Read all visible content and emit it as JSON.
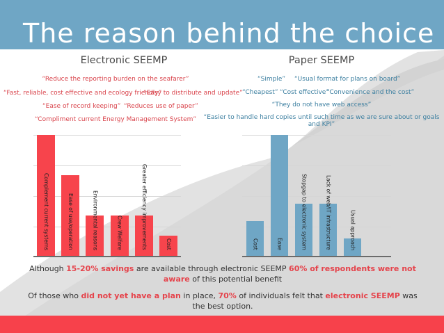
{
  "slide": {
    "title": "The reason behind the choice",
    "colors": {
      "header": "#6fa6c5",
      "electronic_bar": "#f7444c",
      "paper_bar": "#6fa6c5",
      "highlight": "#e5434b",
      "footer": "#f7414b"
    }
  },
  "electronic": {
    "heading": "Electronic SEEMP",
    "quotes": [
      "“Reduce the reporting burden on the seafarer”",
      "“Fast, reliable, cost effective and ecology friendly”",
      "“Easy to distribute and update”",
      "“Ease of record keeping”",
      "“Reduces use of paper”",
      "“Compliment current Energy Management System”"
    ]
  },
  "paper": {
    "heading": "Paper SEEMP",
    "quotes": [
      "“Simple”",
      "“Usual format for plans on board”",
      "“Cheapest”",
      "“Cost effective”",
      "“Convenience and the cost”",
      "“They do not have web access”",
      "“Easier to handle hard copies until such time as we are sure about or goals",
      "and KPI”"
    ]
  },
  "chart_data": [
    {
      "type": "bar",
      "title": "Electronic SEEMP",
      "categories": [
        "Complement current systems",
        "Ease of use/operation",
        "Environmental reasons",
        "Crew Welfare",
        "Greater efficiency improvements",
        "Cost"
      ],
      "values": [
        6,
        4,
        2,
        2,
        2,
        1
      ],
      "color": "#f7444c",
      "xlabel": "",
      "ylabel": "",
      "ylim": [
        0,
        6
      ],
      "grid": true,
      "gridlines": 4,
      "note": "No axis tick labels shown; values are relative bar heights"
    },
    {
      "type": "bar",
      "title": "Paper SEEMP",
      "categories": [
        "Cost",
        "Ease",
        "Stopgap to electronic system",
        "Lack of web/IT infrastructure",
        "Usual approach"
      ],
      "values": [
        2,
        7,
        3,
        3,
        1
      ],
      "color": "#6fa6c5",
      "xlabel": "",
      "ylabel": "",
      "ylim": [
        0,
        7
      ],
      "grid": true,
      "gridlines": 4,
      "note": "No axis tick labels shown; values are relative bar heights"
    }
  ],
  "summary": {
    "line1": {
      "t1": "Although ",
      "h1": "15-20% savings",
      "t2": " are available through electronic SEEMP ",
      "h2": "60% of respondents were not aware",
      "t3": " of this potential benefit"
    },
    "line2": {
      "t1": "Of those who ",
      "h1": "did not yet have a plan",
      "t2": " in place, ",
      "h2": "70%",
      "t3": " of individuals felt that ",
      "h3": "electronic SEEMP",
      "t4": " was the best option."
    }
  }
}
